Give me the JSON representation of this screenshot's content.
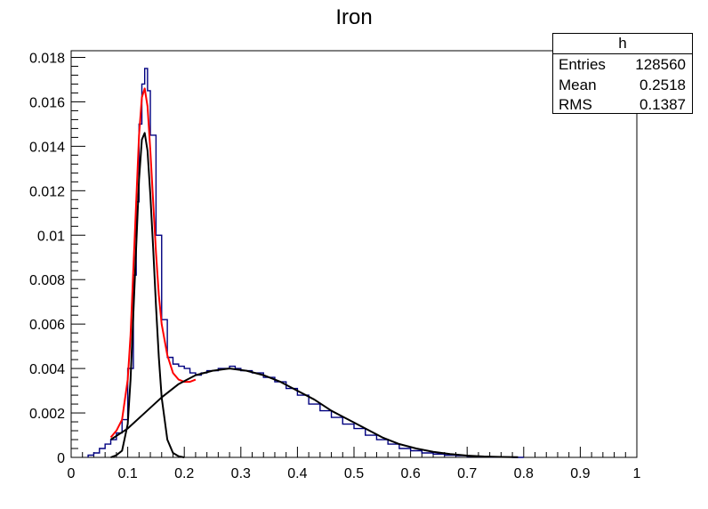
{
  "chart_data": {
    "type": "histogram",
    "title": "Iron",
    "xlim": [
      0,
      1
    ],
    "ylim": [
      0,
      0.0183
    ],
    "x_ticks": [
      "0",
      "0.1",
      "0.2",
      "0.3",
      "0.4",
      "0.5",
      "0.6",
      "0.7",
      "0.8",
      "0.9",
      "1"
    ],
    "y_ticks": [
      "0",
      "0.002",
      "0.004",
      "0.006",
      "0.008",
      "0.01",
      "0.012",
      "0.014",
      "0.016",
      "0.018"
    ],
    "x_tick_values": [
      0,
      0.1,
      0.2,
      0.3,
      0.4,
      0.5,
      0.6,
      0.7,
      0.8,
      0.9,
      1
    ],
    "y_tick_values": [
      0,
      0.002,
      0.004,
      0.006,
      0.008,
      0.01,
      0.012,
      0.014,
      0.016,
      0.018
    ],
    "grid": false,
    "legend": "none",
    "stats_box": {
      "name": "h",
      "rows": [
        {
          "label": "Entries",
          "value": "128560"
        },
        {
          "label": "Mean",
          "value": "0.2518"
        },
        {
          "label": "RMS",
          "value": "0.1387"
        }
      ]
    },
    "series": [
      {
        "kind": "histogram",
        "color": "#000080",
        "x": [
          0.03,
          0.04,
          0.05,
          0.06,
          0.07,
          0.08,
          0.09,
          0.1,
          0.11,
          0.115,
          0.12,
          0.125,
          0.13,
          0.135,
          0.14,
          0.15,
          0.16,
          0.17,
          0.18,
          0.19,
          0.2,
          0.21,
          0.22,
          0.23,
          0.24,
          0.25,
          0.26,
          0.27,
          0.28,
          0.29,
          0.3,
          0.32,
          0.34,
          0.36,
          0.38,
          0.4,
          0.42,
          0.44,
          0.46,
          0.48,
          0.5,
          0.52,
          0.54,
          0.56,
          0.58,
          0.6,
          0.62,
          0.64,
          0.66,
          0.68,
          0.7,
          0.72,
          0.74,
          0.76,
          0.78
        ],
        "y": [
          0.0001,
          0.0002,
          0.0004,
          0.0006,
          0.0008,
          0.0011,
          0.0017,
          0.004,
          0.0082,
          0.0115,
          0.015,
          0.0168,
          0.0175,
          0.0165,
          0.0145,
          0.01,
          0.0062,
          0.0045,
          0.0042,
          0.0041,
          0.004,
          0.0038,
          0.0037,
          0.0038,
          0.0039,
          0.0039,
          0.004,
          0.004,
          0.0041,
          0.004,
          0.0039,
          0.0038,
          0.0036,
          0.0034,
          0.0031,
          0.0028,
          0.0024,
          0.0021,
          0.0018,
          0.0015,
          0.0013,
          0.001,
          0.0008,
          0.0006,
          0.0004,
          0.0003,
          0.0002,
          0.00015,
          0.0001,
          8e-05,
          5e-05,
          3e-05,
          2e-05,
          1e-05,
          0.0
        ]
      },
      {
        "kind": "curve",
        "color": "#ff0000",
        "x": [
          0.07,
          0.08,
          0.09,
          0.1,
          0.105,
          0.11,
          0.115,
          0.12,
          0.125,
          0.13,
          0.135,
          0.14,
          0.145,
          0.15,
          0.155,
          0.16,
          0.17,
          0.18,
          0.19,
          0.2,
          0.21,
          0.22
        ],
        "y": [
          0.0009,
          0.0012,
          0.0017,
          0.0035,
          0.0055,
          0.0085,
          0.0115,
          0.0145,
          0.0162,
          0.0166,
          0.0158,
          0.0138,
          0.0115,
          0.0092,
          0.0073,
          0.006,
          0.0046,
          0.0038,
          0.0035,
          0.0034,
          0.0034,
          0.0035
        ]
      },
      {
        "kind": "curve",
        "color": "#000000",
        "x": [
          0.07,
          0.08,
          0.09,
          0.1,
          0.105,
          0.11,
          0.115,
          0.12,
          0.125,
          0.13,
          0.135,
          0.14,
          0.145,
          0.15,
          0.155,
          0.16,
          0.17,
          0.18,
          0.19,
          0.2
        ],
        "y": [
          0.0,
          0.0001,
          0.0003,
          0.0015,
          0.0035,
          0.0065,
          0.0095,
          0.0125,
          0.0143,
          0.0146,
          0.0138,
          0.0118,
          0.0094,
          0.0068,
          0.0045,
          0.0027,
          0.0008,
          0.0002,
          5e-05,
          0.0
        ]
      },
      {
        "kind": "curve",
        "color": "#000000",
        "x": [
          0.07,
          0.1,
          0.13,
          0.16,
          0.19,
          0.22,
          0.25,
          0.28,
          0.31,
          0.34,
          0.37,
          0.4,
          0.43,
          0.46,
          0.49,
          0.52,
          0.55,
          0.58,
          0.61,
          0.64,
          0.67,
          0.7,
          0.73,
          0.76,
          0.79
        ],
        "y": [
          0.0008,
          0.0013,
          0.002,
          0.0027,
          0.0033,
          0.0037,
          0.0039,
          0.004,
          0.0039,
          0.0037,
          0.0034,
          0.003,
          0.0026,
          0.0021,
          0.0017,
          0.0013,
          0.0009,
          0.0006,
          0.0004,
          0.00025,
          0.00015,
          8e-05,
          4e-05,
          2e-05,
          1e-05
        ]
      }
    ]
  }
}
